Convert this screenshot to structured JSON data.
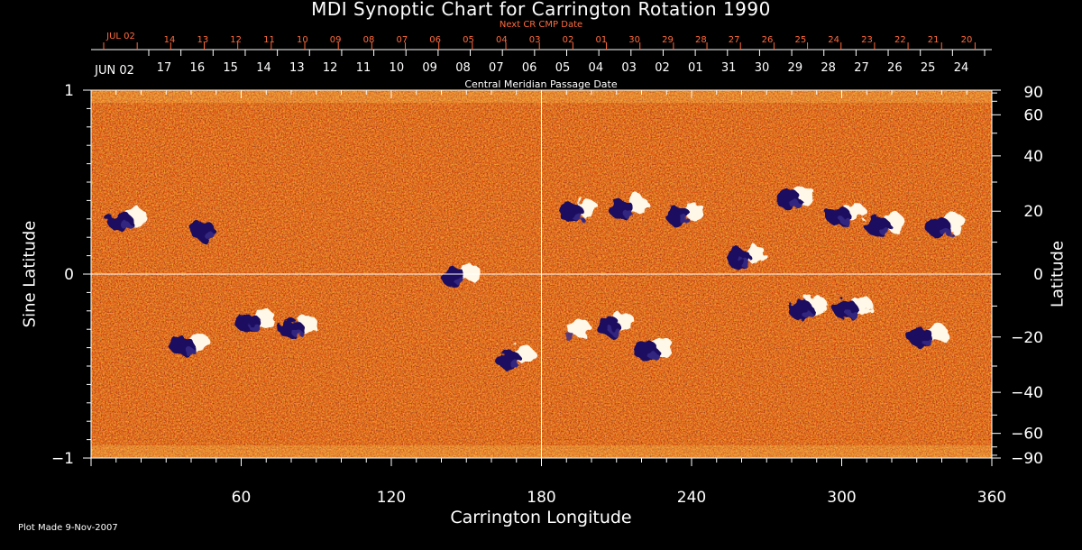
{
  "chart_data": {
    "type": "heatmap",
    "title": "MDI Synoptic Chart for Carrington Rotation 1990",
    "xlabel": "Carrington Longitude",
    "ylabel_left": "Sine Latitude",
    "ylabel_right": "Latitude",
    "xlim": [
      0,
      360
    ],
    "ylim": [
      -1,
      1
    ],
    "x_ticks": [
      "60",
      "120",
      "180",
      "240",
      "300",
      "360"
    ],
    "y_ticks_left": [
      "1",
      "0",
      "−1"
    ],
    "y_ticks_right": [
      "90",
      "60",
      "40",
      "20",
      "0",
      "−20",
      "−40",
      "−60",
      "−90"
    ],
    "top_axis_red_label": "Next CR CMP Date",
    "top_axis_red_first": "JUL 02",
    "top_axis_red_dates": [
      "14",
      "13",
      "12",
      "11",
      "10",
      "09",
      "08",
      "07",
      "06",
      "05",
      "04",
      "03",
      "02",
      "01",
      "30",
      "29",
      "28",
      "27",
      "26",
      "25",
      "24",
      "23",
      "22",
      "21",
      "20"
    ],
    "top_axis_white_label": "Central Meridian Passage Date",
    "top_axis_white_first": "JUN 02",
    "top_axis_white_dates": [
      "17",
      "16",
      "15",
      "14",
      "13",
      "12",
      "11",
      "10",
      "09",
      "08",
      "07",
      "06",
      "05",
      "04",
      "03",
      "02",
      "01",
      "31",
      "30",
      "29",
      "28",
      "27",
      "26",
      "25",
      "24"
    ],
    "gridlines": [
      {
        "axis": "x",
        "value": 180
      },
      {
        "axis": "y",
        "value": 0
      }
    ],
    "colors": {
      "background": "#000000",
      "field_low": "#1a0f5a",
      "field_mid": "#d83a10",
      "field_high": "#ffffff",
      "red_axis": "#ff6a3c",
      "text": "#ffffff"
    },
    "active_regions": [
      {
        "lon": 15,
        "sinlat": 0.3,
        "polarity": "mixed"
      },
      {
        "lon": 48,
        "sinlat": 0.25,
        "polarity": "negative"
      },
      {
        "lon": 66,
        "sinlat": -0.25,
        "polarity": "mixed"
      },
      {
        "lon": 83,
        "sinlat": -0.28,
        "polarity": "mixed"
      },
      {
        "lon": 40,
        "sinlat": -0.38,
        "polarity": "mixed"
      },
      {
        "lon": 148,
        "sinlat": 0.0,
        "polarity": "mixed"
      },
      {
        "lon": 170,
        "sinlat": -0.45,
        "polarity": "mixed"
      },
      {
        "lon": 195,
        "sinlat": 0.35,
        "polarity": "mixed"
      },
      {
        "lon": 215,
        "sinlat": 0.37,
        "polarity": "mixed"
      },
      {
        "lon": 238,
        "sinlat": 0.33,
        "polarity": "mixed"
      },
      {
        "lon": 210,
        "sinlat": -0.27,
        "polarity": "mixed"
      },
      {
        "lon": 225,
        "sinlat": -0.4,
        "polarity": "mixed"
      },
      {
        "lon": 192,
        "sinlat": -0.3,
        "polarity": "positive"
      },
      {
        "lon": 262,
        "sinlat": 0.1,
        "polarity": "mixed"
      },
      {
        "lon": 282,
        "sinlat": 0.42,
        "polarity": "mixed"
      },
      {
        "lon": 302,
        "sinlat": 0.33,
        "polarity": "mixed"
      },
      {
        "lon": 318,
        "sinlat": 0.27,
        "polarity": "mixed"
      },
      {
        "lon": 342,
        "sinlat": 0.27,
        "polarity": "mixed"
      },
      {
        "lon": 287,
        "sinlat": -0.18,
        "polarity": "mixed"
      },
      {
        "lon": 305,
        "sinlat": -0.18,
        "polarity": "mixed"
      },
      {
        "lon": 335,
        "sinlat": -0.33,
        "polarity": "mixed"
      }
    ]
  },
  "footer": {
    "plot_made": "Plot Made  9-Nov-2007"
  }
}
